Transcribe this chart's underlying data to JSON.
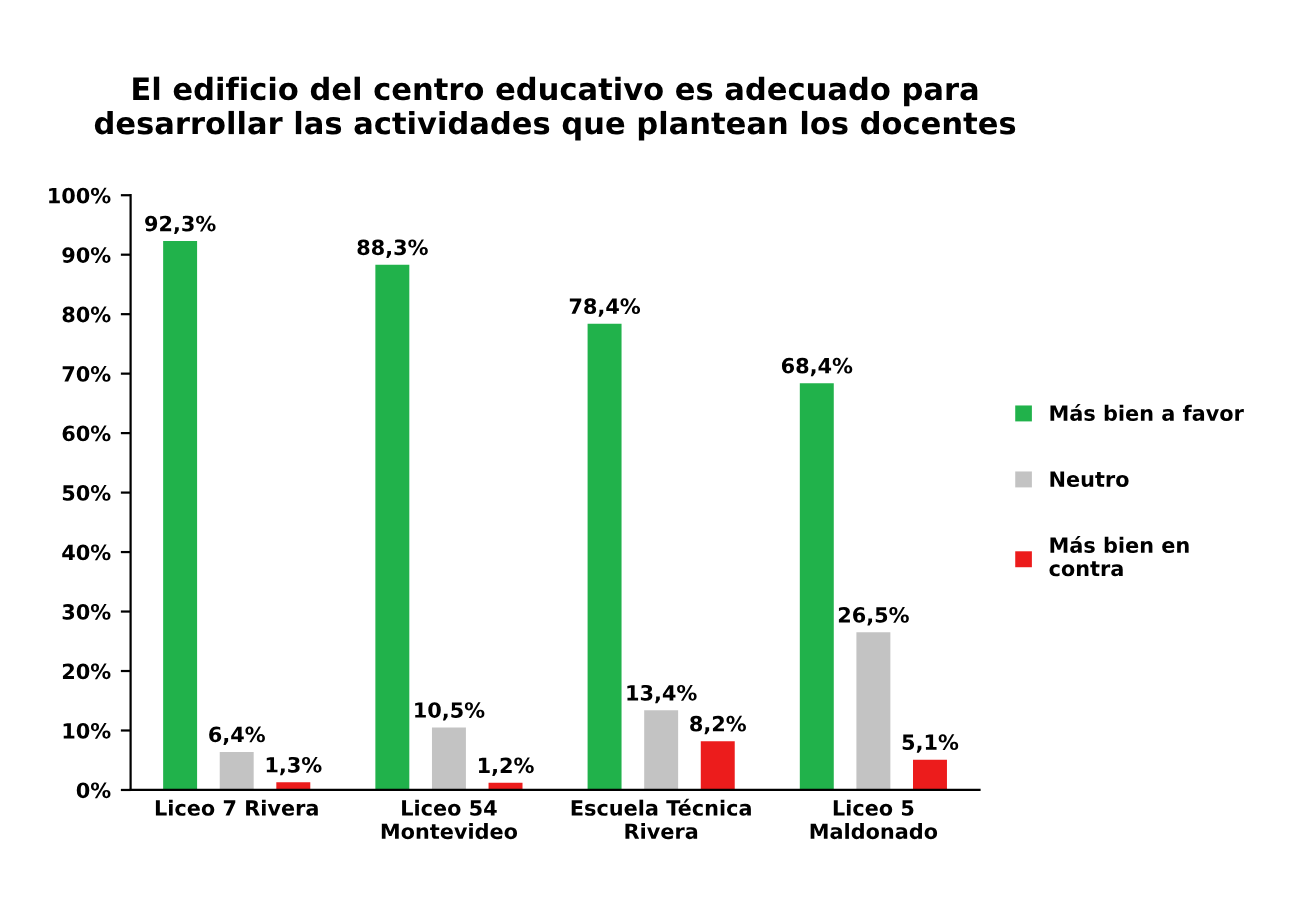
{
  "chart_data": {
    "type": "bar",
    "title": "El edificio del centro educativo es adecuado para\ndesarrollar las actividades que plantean los docentes",
    "categories": [
      "Liceo 7 Rivera",
      "Liceo 54\nMontevideo",
      "Escuela Técnica\nRivera",
      "Liceo 5\nMaldonado"
    ],
    "series": [
      {
        "name": "Más bien a favor",
        "color": "#21b24b",
        "values": [
          92.3,
          88.3,
          78.4,
          68.4
        ],
        "value_labels": [
          "92,3%",
          "88,3%",
          "78,4%",
          "68,4%"
        ]
      },
      {
        "name": "Neutro",
        "color": "#c3c3c3",
        "values": [
          6.4,
          10.5,
          13.4,
          26.5
        ],
        "value_labels": [
          "6,4%",
          "10,5%",
          "13,4%",
          "26,5%"
        ]
      },
      {
        "name": "Más bien en\ncontra",
        "color": "#ec1c1c",
        "values": [
          1.3,
          1.2,
          8.2,
          5.1
        ],
        "value_labels": [
          "1,3%",
          "1,2%",
          "8,2%",
          "5,1%"
        ]
      }
    ],
    "ylim": [
      0,
      100
    ],
    "yticks": [
      {
        "value": 0,
        "label": "0%"
      },
      {
        "value": 10,
        "label": "10%"
      },
      {
        "value": 20,
        "label": "20%"
      },
      {
        "value": 30,
        "label": "30%"
      },
      {
        "value": 40,
        "label": "40%"
      },
      {
        "value": 50,
        "label": "50%"
      },
      {
        "value": 60,
        "label": "60%"
      },
      {
        "value": 70,
        "label": "70%"
      },
      {
        "value": 80,
        "label": "80%"
      },
      {
        "value": 90,
        "label": "90%"
      },
      {
        "value": 100,
        "label": "100%"
      }
    ],
    "grid": false,
    "legend": "right"
  }
}
